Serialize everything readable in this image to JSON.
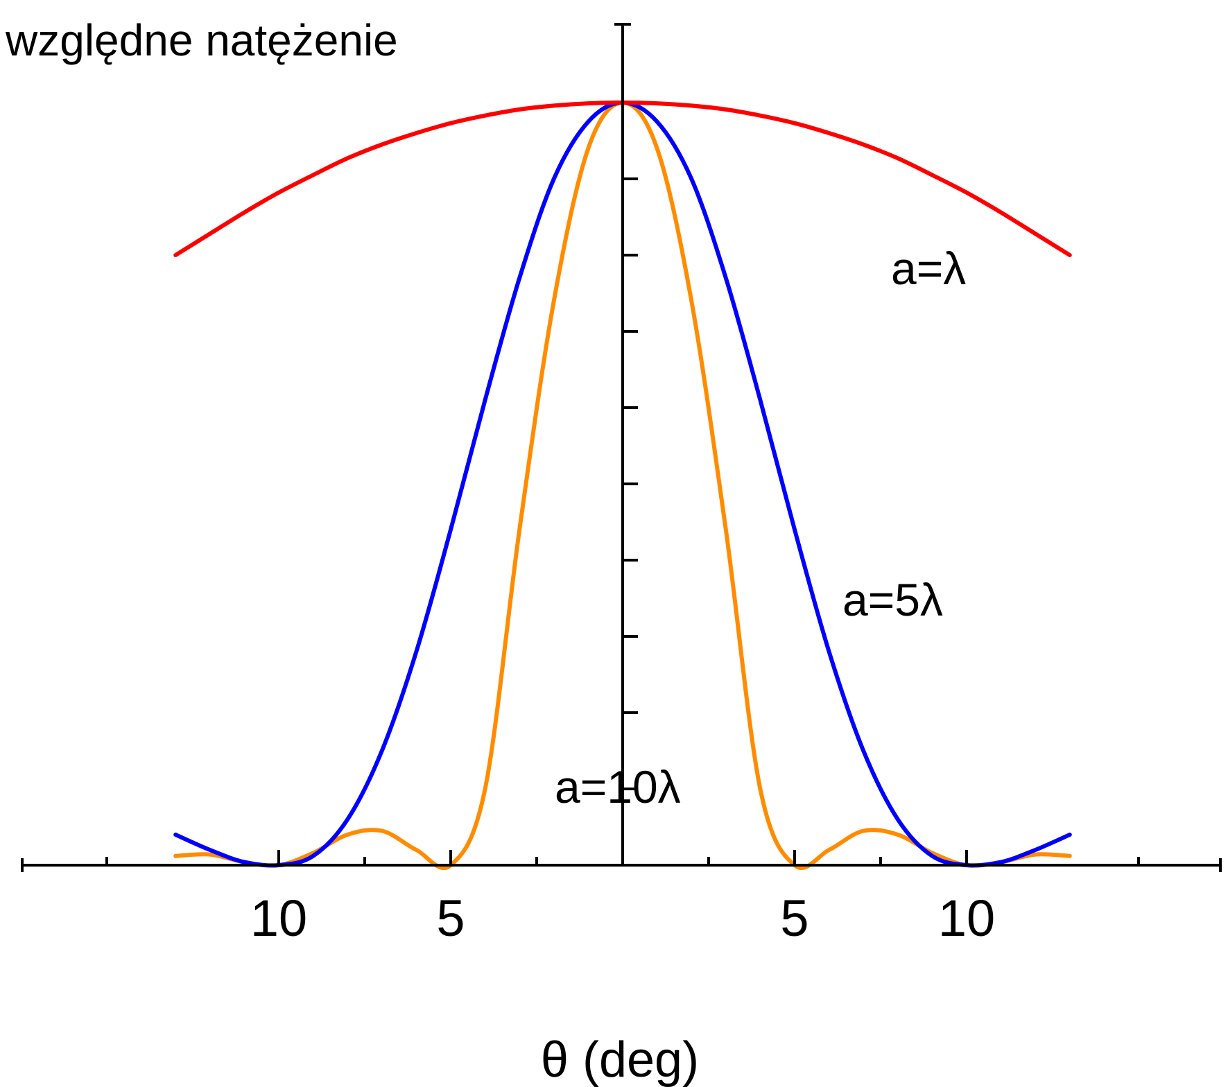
{
  "chart_data": {
    "type": "line",
    "title": "",
    "ylabel": "względne natężenie",
    "xlabel": "θ (deg)",
    "xlim": [
      -17.5,
      17.5
    ],
    "ylim": [
      0,
      1.1
    ],
    "x_tick_labels": [
      {
        "x": -10,
        "label": "10"
      },
      {
        "x": -5,
        "label": "5"
      },
      {
        "x": 5,
        "label": "5"
      },
      {
        "x": 10,
        "label": "10"
      }
    ],
    "x_minor_ticks": [
      -15,
      -7.5,
      -2.5,
      2.5,
      7.5,
      15
    ],
    "y_ticks": [
      0.1,
      0.2,
      0.3,
      0.4,
      0.5,
      0.6,
      0.7,
      0.8,
      0.9
    ],
    "grid": false,
    "legend": "none",
    "series": [
      {
        "name": "a=λ",
        "color": "#ff0000",
        "x": [
          -13,
          -12,
          -11,
          -10,
          -9,
          -8,
          -7,
          -6,
          -5,
          -4,
          -3,
          -2,
          -1,
          0,
          1,
          2,
          3,
          4,
          5,
          6,
          7,
          8,
          9,
          10,
          11,
          12,
          13
        ],
        "y": [
          0.8,
          0.828,
          0.856,
          0.882,
          0.905,
          0.927,
          0.945,
          0.96,
          0.973,
          0.983,
          0.991,
          0.996,
          0.999,
          1.0,
          0.999,
          0.996,
          0.991,
          0.983,
          0.973,
          0.96,
          0.945,
          0.927,
          0.905,
          0.882,
          0.856,
          0.828,
          0.8
        ]
      },
      {
        "name": "a=5λ",
        "color": "#0000ff",
        "x": [
          -13,
          -12,
          -11,
          -10,
          -9,
          -8,
          -7,
          -6,
          -5,
          -4,
          -3,
          -2,
          -1,
          0,
          1,
          2,
          3,
          4,
          5,
          6,
          7,
          8,
          9,
          10,
          11,
          12,
          13
        ],
        "y": [
          0.04,
          0.02,
          0.004,
          0.0,
          0.012,
          0.06,
          0.15,
          0.28,
          0.44,
          0.61,
          0.77,
          0.9,
          0.975,
          1.0,
          0.975,
          0.9,
          0.77,
          0.61,
          0.44,
          0.28,
          0.15,
          0.06,
          0.012,
          0.0,
          0.004,
          0.02,
          0.04
        ]
      },
      {
        "name": "a=10λ",
        "color": "#ff8c00",
        "x": [
          -13,
          -12,
          -11,
          -10,
          -9,
          -8,
          -7,
          -6,
          -5,
          -4,
          -3,
          -2,
          -1,
          0,
          1,
          2,
          3,
          4,
          5,
          6,
          7,
          8,
          9,
          10,
          11,
          12,
          13
        ],
        "y": [
          0.012,
          0.014,
          0.004,
          0.0,
          0.016,
          0.04,
          0.045,
          0.02,
          0.0,
          0.1,
          0.44,
          0.74,
          0.94,
          1.0,
          0.94,
          0.74,
          0.44,
          0.1,
          0.0,
          0.02,
          0.045,
          0.04,
          0.016,
          0.0,
          0.004,
          0.014,
          0.012
        ]
      }
    ]
  }
}
